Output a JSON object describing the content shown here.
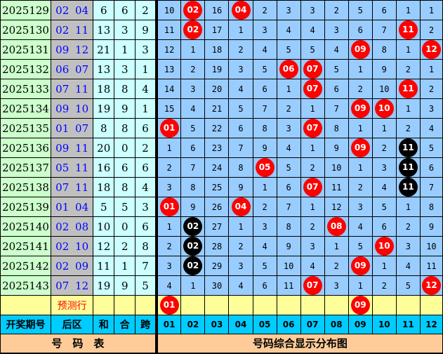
{
  "colors": {
    "red_ball": "#ff0000",
    "black_ball": "#000000",
    "period_bg": "#ccffcc",
    "back_bg": "#c0c0c0",
    "back_text": "#0000ff",
    "sum_bg": "#ccffff",
    "grid_bg": "#99ccff",
    "predict_bg": "#ffff99",
    "header_bg": "#00ccff",
    "footer_bg": "#ffcc99"
  },
  "rows": [
    {
      "period": "2025129",
      "back": "02 04",
      "he": "6",
      "hezhi": "6",
      "kua": "2",
      "cells": [
        "10",
        "02",
        "16",
        "04",
        "2",
        "3",
        "3",
        "2",
        "5",
        "6",
        "1",
        "1"
      ],
      "red": [
        "02",
        "04"
      ],
      "black": []
    },
    {
      "period": "2025130",
      "back": "02 11",
      "he": "13",
      "hezhi": "3",
      "kua": "9",
      "cells": [
        "11",
        "02",
        "17",
        "1",
        "3",
        "4",
        "4",
        "3",
        "6",
        "7",
        "11",
        "2"
      ],
      "red": [
        "02",
        "11"
      ],
      "black": []
    },
    {
      "period": "2025131",
      "back": "09 12",
      "he": "21",
      "hezhi": "1",
      "kua": "3",
      "cells": [
        "12",
        "1",
        "18",
        "2",
        "4",
        "5",
        "5",
        "4",
        "09",
        "8",
        "1",
        "12"
      ],
      "red": [
        "09",
        "12"
      ],
      "black": []
    },
    {
      "period": "2025132",
      "back": "06 07",
      "he": "13",
      "hezhi": "3",
      "kua": "1",
      "cells": [
        "13",
        "2",
        "19",
        "3",
        "5",
        "06",
        "07",
        "5",
        "1",
        "9",
        "2",
        "1"
      ],
      "red": [
        "06",
        "07"
      ],
      "black": []
    },
    {
      "period": "2025133",
      "back": "07 11",
      "he": "18",
      "hezhi": "8",
      "kua": "4",
      "cells": [
        "14",
        "3",
        "20",
        "4",
        "6",
        "1",
        "07",
        "6",
        "2",
        "10",
        "11",
        "2"
      ],
      "red": [
        "07",
        "11"
      ],
      "black": []
    },
    {
      "period": "2025134",
      "back": "09 10",
      "he": "19",
      "hezhi": "9",
      "kua": "1",
      "cells": [
        "15",
        "4",
        "21",
        "5",
        "7",
        "2",
        "1",
        "7",
        "09",
        "10",
        "1",
        "3"
      ],
      "red": [
        "09",
        "10"
      ],
      "black": []
    },
    {
      "period": "2025135",
      "back": "01 07",
      "he": "8",
      "hezhi": "8",
      "kua": "6",
      "cells": [
        "01",
        "5",
        "22",
        "6",
        "8",
        "3",
        "07",
        "8",
        "1",
        "1",
        "2",
        "4"
      ],
      "red": [
        "01",
        "07"
      ],
      "black": []
    },
    {
      "period": "2025136",
      "back": "09 11",
      "he": "20",
      "hezhi": "0",
      "kua": "2",
      "cells": [
        "1",
        "6",
        "23",
        "7",
        "9",
        "4",
        "1",
        "9",
        "09",
        "2",
        "11",
        "5"
      ],
      "red": [
        "09"
      ],
      "black": [
        "11"
      ]
    },
    {
      "period": "2025137",
      "back": "05 11",
      "he": "16",
      "hezhi": "6",
      "kua": "6",
      "cells": [
        "2",
        "7",
        "24",
        "8",
        "05",
        "5",
        "2",
        "10",
        "1",
        "3",
        "11",
        "6"
      ],
      "red": [
        "05"
      ],
      "black": [
        "11"
      ]
    },
    {
      "period": "2025138",
      "back": "07 11",
      "he": "18",
      "hezhi": "8",
      "kua": "4",
      "cells": [
        "3",
        "8",
        "25",
        "9",
        "1",
        "6",
        "07",
        "11",
        "2",
        "4",
        "11",
        "7"
      ],
      "red": [
        "07"
      ],
      "black": [
        "11"
      ]
    },
    {
      "period": "2025139",
      "back": "01 04",
      "he": "5",
      "hezhi": "5",
      "kua": "3",
      "cells": [
        "01",
        "9",
        "26",
        "04",
        "2",
        "7",
        "1",
        "12",
        "3",
        "5",
        "1",
        "8"
      ],
      "red": [
        "01",
        "04"
      ],
      "black": []
    },
    {
      "period": "2025140",
      "back": "02 08",
      "he": "10",
      "hezhi": "0",
      "kua": "6",
      "cells": [
        "1",
        "02",
        "27",
        "1",
        "3",
        "8",
        "2",
        "08",
        "4",
        "6",
        "2",
        "9"
      ],
      "red": [
        "08"
      ],
      "black": [
        "02"
      ]
    },
    {
      "period": "2025141",
      "back": "02 10",
      "he": "12",
      "hezhi": "2",
      "kua": "8",
      "cells": [
        "2",
        "02",
        "28",
        "2",
        "4",
        "9",
        "3",
        "1",
        "5",
        "10",
        "3",
        "10"
      ],
      "red": [
        "10"
      ],
      "black": [
        "02"
      ]
    },
    {
      "period": "2025142",
      "back": "02 09",
      "he": "11",
      "hezhi": "1",
      "kua": "7",
      "cells": [
        "3",
        "02",
        "29",
        "3",
        "5",
        "10",
        "4",
        "2",
        "09",
        "1",
        "4",
        "11"
      ],
      "red": [
        "09"
      ],
      "black": [
        "02"
      ]
    },
    {
      "period": "2025143",
      "back": "07 12",
      "he": "19",
      "hezhi": "9",
      "kua": "5",
      "cells": [
        "4",
        "1",
        "30",
        "4",
        "6",
        "11",
        "07",
        "3",
        "1",
        "2",
        "5",
        "12"
      ],
      "red": [
        "07",
        "12"
      ],
      "black": []
    }
  ],
  "prediction": {
    "label": "预测行",
    "red": [
      "01",
      "09"
    ]
  },
  "header": {
    "period": "开奖期号",
    "back": "后区",
    "he": "和",
    "hezhi": "合",
    "kua": "跨",
    "numbers": [
      "01",
      "02",
      "03",
      "04",
      "05",
      "06",
      "07",
      "08",
      "09",
      "10",
      "11",
      "12"
    ]
  },
  "footer": {
    "left": "号　码　表",
    "right": "号码综合显示分布图"
  }
}
